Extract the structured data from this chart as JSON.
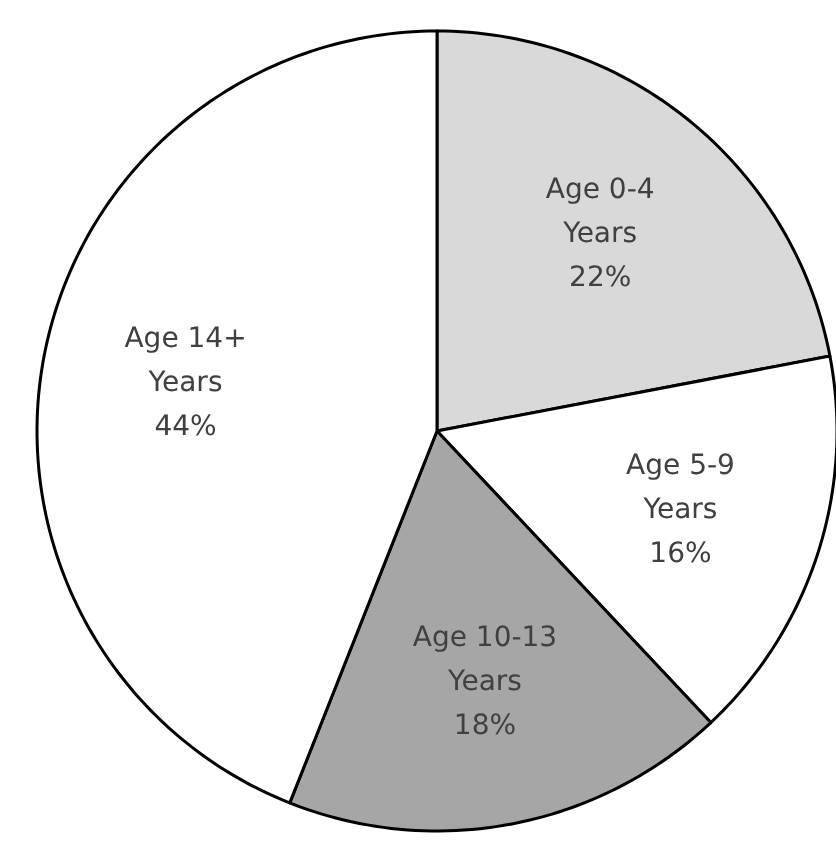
{
  "chart_data": {
    "type": "pie",
    "categories": [
      "Age 0-4 Years",
      "Age 5-9 Years",
      "Age 10-13 Years",
      "Age 14+ Years"
    ],
    "values": [
      22,
      16,
      18,
      44
    ],
    "colors": [
      "#d9d9d9",
      "#ffffff",
      "#a6a6a6",
      "#ffffff"
    ],
    "value_labels": [
      "22%",
      "16%",
      "18%",
      "44%"
    ]
  }
}
